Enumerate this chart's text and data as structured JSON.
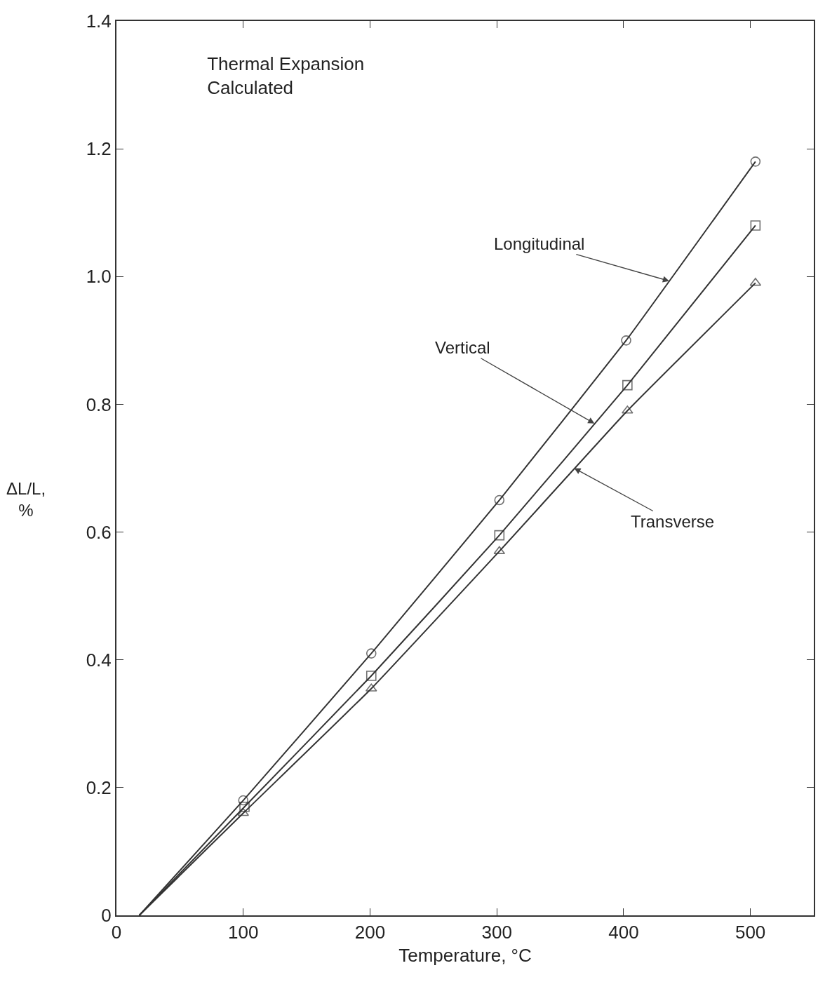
{
  "chart_data": {
    "type": "line",
    "title": "Thermal Expansion\nCalculated",
    "xlabel": "Temperature, °C",
    "ylabel": "ΔL/L,\n%",
    "xlim": [
      0,
      550
    ],
    "xticks": [
      0,
      100,
      200,
      300,
      400,
      500
    ],
    "ylim": [
      0,
      1.4
    ],
    "yticks": [
      0,
      0.2,
      0.4,
      0.6,
      0.8,
      {
        "value": 1,
        "label": "1.0"
      },
      1.2,
      1.4
    ],
    "grid": false,
    "line_style": "solid",
    "series": [
      {
        "color": "#333333",
        "marker": "circle",
        "x": [
          18,
          100,
          201,
          302,
          402,
          504
        ],
        "values": [
          0,
          0.18,
          0.41,
          0.65,
          0.9,
          1.18
        ]
      },
      {
        "color": "#333333",
        "marker": "square",
        "x": [
          18,
          101,
          201,
          302,
          403,
          504
        ],
        "values": [
          0,
          0.17,
          0.375,
          0.595,
          0.83,
          1.08
        ]
      },
      {
        "color": "#333333",
        "marker": "triangle",
        "x": [
          18,
          100,
          201,
          302,
          403,
          504
        ],
        "values": [
          0,
          0.16,
          0.355,
          0.57,
          0.79,
          0.99
        ]
      }
    ],
    "annotations": [
      {
        "text": "Longitudinal",
        "x": 436,
        "y": 0.993
      },
      {
        "text": "Vertical",
        "x": 377,
        "y": 0.77
      },
      {
        "text": "Transverse",
        "x": 361,
        "y": 0.7
      }
    ]
  }
}
